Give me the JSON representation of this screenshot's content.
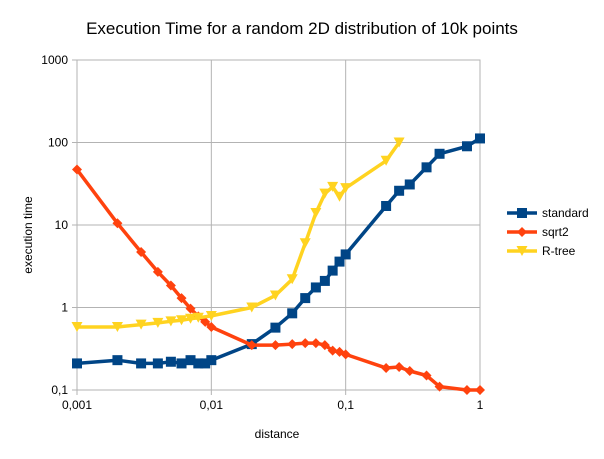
{
  "chart_data": {
    "type": "line",
    "title": "Execution Time for a random 2D distribution of 10k points",
    "xlabel": "distance",
    "ylabel": "execution time",
    "x_scale": "log",
    "y_scale": "log",
    "xlim": [
      0.001,
      1
    ],
    "ylim": [
      0.1,
      1000
    ],
    "x_ticks": [
      "0,001",
      "0,01",
      "0,1",
      "1"
    ],
    "y_ticks": [
      "0,1",
      "1",
      "10",
      "100",
      "1000"
    ],
    "grid": "major, both axes",
    "legend_position": "right",
    "series": [
      {
        "name": "standard",
        "color": "#004586",
        "marker": "square",
        "points": [
          [
            0.001,
            0.21
          ],
          [
            0.002,
            0.23
          ],
          [
            0.003,
            0.21
          ],
          [
            0.004,
            0.21
          ],
          [
            0.005,
            0.22
          ],
          [
            0.006,
            0.21
          ],
          [
            0.007,
            0.23
          ],
          [
            0.008,
            0.21
          ],
          [
            0.009,
            0.21
          ],
          [
            0.01,
            0.23
          ],
          [
            0.02,
            0.36
          ],
          [
            0.03,
            0.57
          ],
          [
            0.04,
            0.85
          ],
          [
            0.05,
            1.3
          ],
          [
            0.06,
            1.75
          ],
          [
            0.07,
            2.1
          ],
          [
            0.08,
            2.8
          ],
          [
            0.09,
            3.6
          ],
          [
            0.1,
            4.4
          ],
          [
            0.2,
            17
          ],
          [
            0.25,
            26
          ],
          [
            0.3,
            31
          ],
          [
            0.4,
            50
          ],
          [
            0.5,
            73
          ],
          [
            0.8,
            90
          ],
          [
            1,
            112
          ]
        ]
      },
      {
        "name": "sqrt2",
        "color": "#ff420e",
        "marker": "diamond",
        "points": [
          [
            0.001,
            47
          ],
          [
            0.002,
            10.5
          ],
          [
            0.003,
            4.7
          ],
          [
            0.004,
            2.7
          ],
          [
            0.005,
            1.85
          ],
          [
            0.006,
            1.3
          ],
          [
            0.007,
            0.97
          ],
          [
            0.008,
            0.78
          ],
          [
            0.009,
            0.67
          ],
          [
            0.01,
            0.58
          ],
          [
            0.02,
            0.35
          ],
          [
            0.03,
            0.35
          ],
          [
            0.04,
            0.36
          ],
          [
            0.05,
            0.37
          ],
          [
            0.06,
            0.37
          ],
          [
            0.07,
            0.35
          ],
          [
            0.08,
            0.3
          ],
          [
            0.09,
            0.29
          ],
          [
            0.1,
            0.27
          ],
          [
            0.2,
            0.185
          ],
          [
            0.25,
            0.19
          ],
          [
            0.3,
            0.17
          ],
          [
            0.4,
            0.15
          ],
          [
            0.5,
            0.11
          ],
          [
            0.8,
            0.1
          ],
          [
            1,
            0.1
          ]
        ]
      },
      {
        "name": "R-tree",
        "color": "#ffd320",
        "marker": "triangle-down",
        "points": [
          [
            0.001,
            0.58
          ],
          [
            0.002,
            0.58
          ],
          [
            0.003,
            0.62
          ],
          [
            0.004,
            0.65
          ],
          [
            0.005,
            0.68
          ],
          [
            0.006,
            0.7
          ],
          [
            0.007,
            0.73
          ],
          [
            0.008,
            0.75
          ],
          [
            0.01,
            0.79
          ],
          [
            0.02,
            1.0
          ],
          [
            0.03,
            1.4
          ],
          [
            0.04,
            2.2
          ],
          [
            0.05,
            6
          ],
          [
            0.06,
            14
          ],
          [
            0.07,
            24
          ],
          [
            0.08,
            29
          ],
          [
            0.09,
            22
          ],
          [
            0.1,
            28
          ],
          [
            0.2,
            60
          ],
          [
            0.25,
            100
          ]
        ]
      }
    ]
  }
}
